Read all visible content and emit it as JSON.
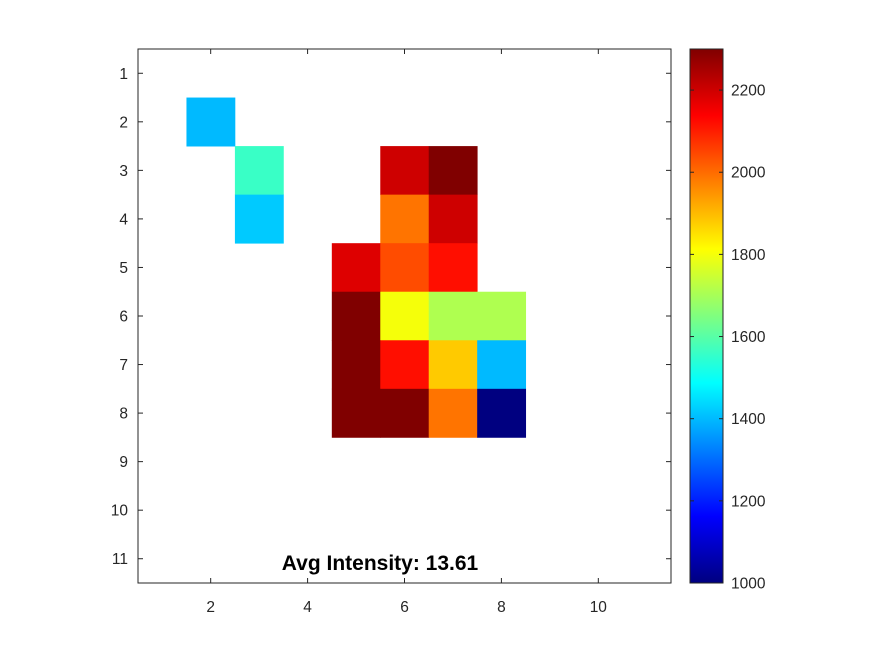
{
  "chart_data": {
    "type": "heatmap",
    "title": "",
    "xlabel": "",
    "ylabel": "",
    "xlim": [
      0.5,
      11.5
    ],
    "ylim": [
      0.5,
      11.5
    ],
    "y_reversed": true,
    "x_ticks": [
      2,
      4,
      6,
      8,
      10
    ],
    "y_ticks": [
      1,
      2,
      3,
      4,
      5,
      6,
      7,
      8,
      9,
      10,
      11
    ],
    "colormap": "jet",
    "clim": [
      1000,
      2300
    ],
    "colorbar_ticks": [
      1000,
      1200,
      1400,
      1600,
      1800,
      2000,
      2200
    ],
    "colorbar_location": "right",
    "annotation": "Avg Intensity: 13.61",
    "cells": [
      {
        "x": 2,
        "y": 2,
        "value": 1400
      },
      {
        "x": 3,
        "y": 3,
        "value": 1560
      },
      {
        "x": 3,
        "y": 4,
        "value": 1420
      },
      {
        "x": 6,
        "y": 3,
        "value": 2200
      },
      {
        "x": 7,
        "y": 3,
        "value": 2300
      },
      {
        "x": 6,
        "y": 4,
        "value": 1990
      },
      {
        "x": 7,
        "y": 4,
        "value": 2200
      },
      {
        "x": 5,
        "y": 5,
        "value": 2180
      },
      {
        "x": 6,
        "y": 5,
        "value": 2040
      },
      {
        "x": 7,
        "y": 5,
        "value": 2120
      },
      {
        "x": 5,
        "y": 6,
        "value": 2300
      },
      {
        "x": 6,
        "y": 6,
        "value": 1800
      },
      {
        "x": 7,
        "y": 6,
        "value": 1710
      },
      {
        "x": 8,
        "y": 6,
        "value": 1710
      },
      {
        "x": 5,
        "y": 7,
        "value": 2300
      },
      {
        "x": 6,
        "y": 7,
        "value": 2120
      },
      {
        "x": 7,
        "y": 7,
        "value": 1880
      },
      {
        "x": 8,
        "y": 7,
        "value": 1400
      },
      {
        "x": 5,
        "y": 8,
        "value": 2300
      },
      {
        "x": 6,
        "y": 8,
        "value": 2300
      },
      {
        "x": 7,
        "y": 8,
        "value": 1990
      },
      {
        "x": 8,
        "y": 8,
        "value": 1000
      }
    ]
  }
}
